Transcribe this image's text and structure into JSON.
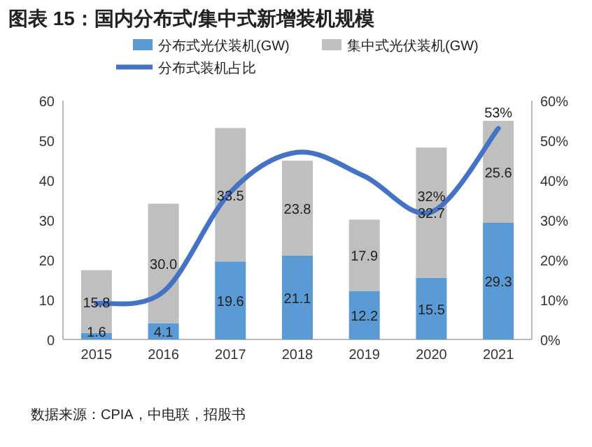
{
  "chart_data": {
    "type": "bar",
    "title": "图表 15：国内分布式/集中式新增装机规模",
    "categories": [
      "2015",
      "2016",
      "2017",
      "2018",
      "2019",
      "2020",
      "2021"
    ],
    "stacked": true,
    "series": [
      {
        "name": "分布式光伏装机(GW)",
        "color": "#5b9bd5",
        "values": [
          1.6,
          4.1,
          19.6,
          21.1,
          12.2,
          15.5,
          29.3
        ]
      },
      {
        "name": "集中式光伏装机(GW)",
        "color": "#bfbfbf",
        "values": [
          15.8,
          30.0,
          33.5,
          23.8,
          17.9,
          32.7,
          25.6
        ],
        "value_labels": [
          "15.8",
          "30.0",
          "33.5",
          "23.8",
          "17.9",
          "32.7",
          "25.6"
        ]
      },
      {
        "name": "分布式装机占比",
        "type": "line",
        "axis": "y2",
        "color": "#4472c4",
        "values": [
          9,
          12,
          37,
          47,
          41,
          32,
          53
        ],
        "value_labels": [
          null,
          null,
          null,
          null,
          null,
          "32%",
          "53%"
        ]
      }
    ],
    "ylim": [
      0,
      60
    ],
    "yticks": [
      0,
      10,
      20,
      30,
      40,
      50,
      60
    ],
    "y2lim": [
      0,
      60
    ],
    "y2ticks": [
      {
        "value": 0,
        "label": "0%"
      },
      {
        "value": 10,
        "label": "10%"
      },
      {
        "value": 20,
        "label": "20%"
      },
      {
        "value": 30,
        "label": "30%"
      },
      {
        "value": 40,
        "label": "40%"
      },
      {
        "value": 50,
        "label": "50%"
      },
      {
        "value": 60,
        "label": "60%"
      }
    ],
    "data_labels": true,
    "legend": "top",
    "grid": false,
    "annotations": [
      "数据来源：CPIA，中电联，招股书"
    ]
  }
}
